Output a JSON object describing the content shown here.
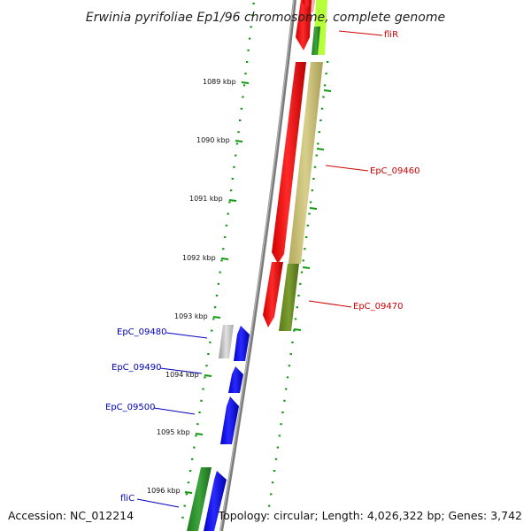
{
  "title": "Erwinia pyrifoliae Ep1/96 chromosome, complete genome",
  "accession": "Accession: NC_012214",
  "summary": "Topology: circular; Length: 4,026,322 bp; Genes: 3,742",
  "ticks": [
    {
      "label": "1089 kbp"
    },
    {
      "label": "1090 kbp"
    },
    {
      "label": "1091 kbp"
    },
    {
      "label": "1092 kbp"
    },
    {
      "label": "1093 kbp"
    },
    {
      "label": "1094 kbp"
    },
    {
      "label": "1095 kbp"
    },
    {
      "label": "1096 kbp"
    }
  ],
  "genes": [
    {
      "label": "fliR",
      "strand": "plus",
      "color": "#cc0000"
    },
    {
      "label": "EpC_09460",
      "strand": "plus",
      "color": "#cc0000"
    },
    {
      "label": "EpC_09470",
      "strand": "plus",
      "color": "#cc0000"
    },
    {
      "label": "EpC_09480",
      "strand": "minus",
      "color": "#0000bb"
    },
    {
      "label": "EpC_09490",
      "strand": "minus",
      "color": "#0000bb"
    },
    {
      "label": "EpC_09500",
      "strand": "minus",
      "color": "#0000bb"
    },
    {
      "label": "fliC",
      "strand": "minus",
      "color": "#0000bb"
    }
  ],
  "colors": {
    "plus_strand": "#ff0000",
    "minus_strand": "#0000ff",
    "backbone": "#888888",
    "ticks": "#006600",
    "cog_olive": "#c8bf78",
    "cog_darkolive": "#6b8e23",
    "cog_green": "#2e8b2e",
    "cog_lime": "#b6ff3a",
    "cog_grey": "#bbbbbb"
  }
}
